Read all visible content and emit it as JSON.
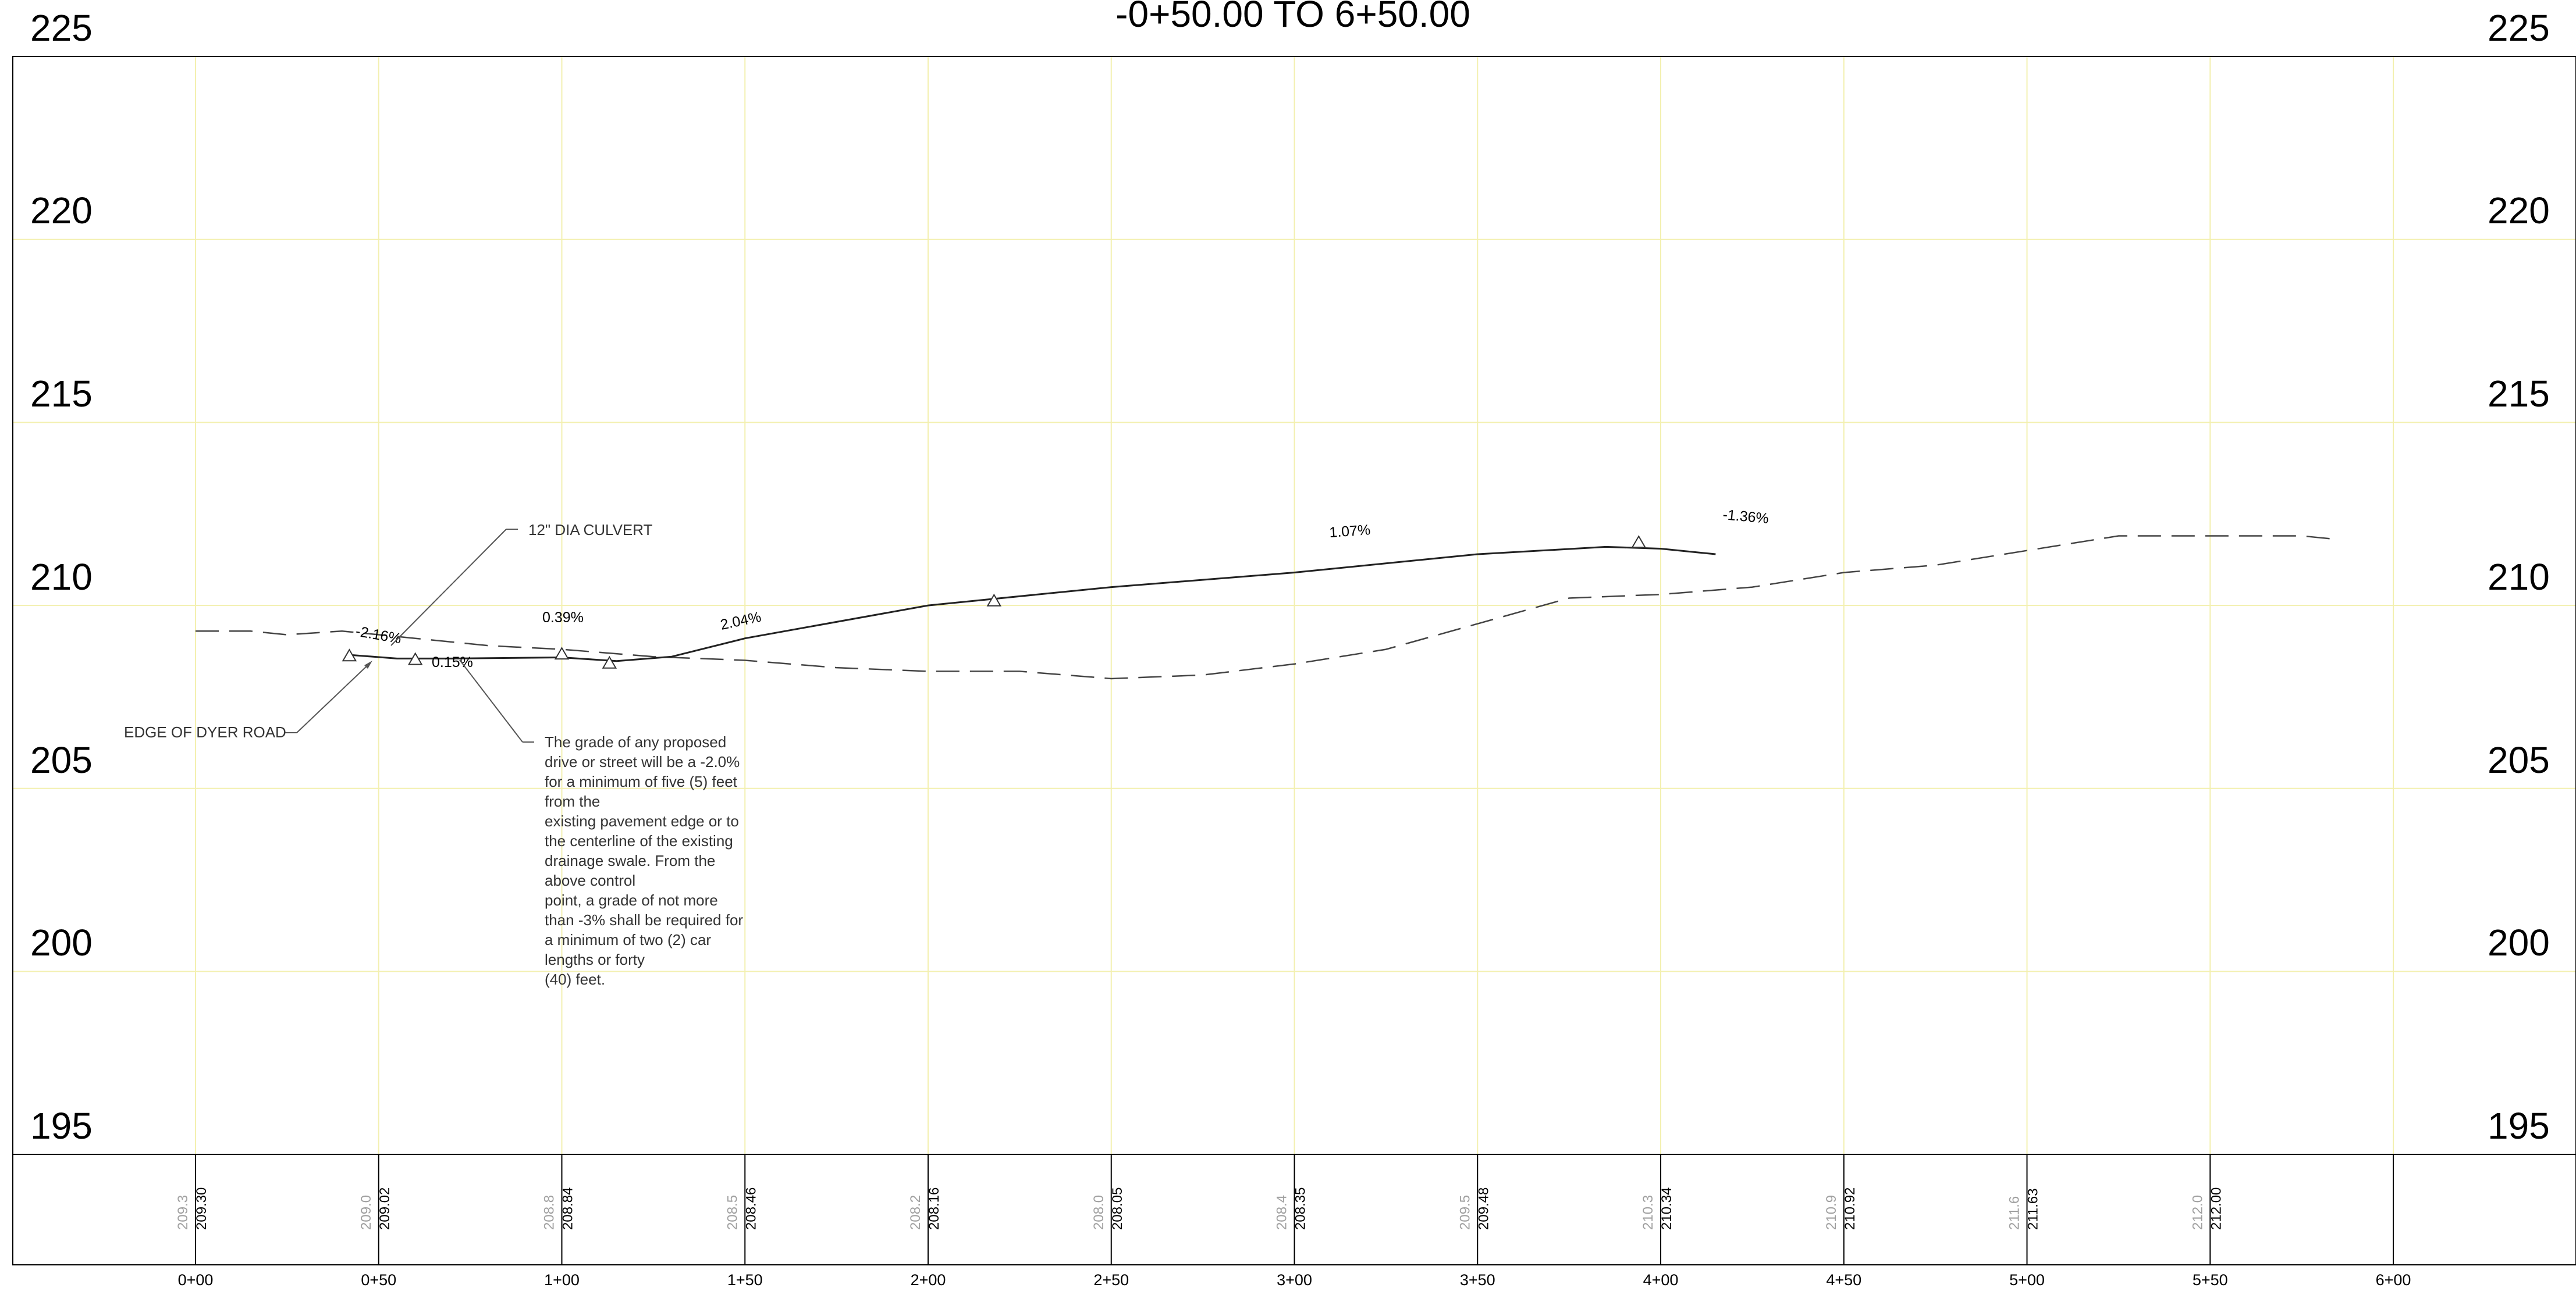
{
  "title": "-0+50.00 TO 6+50.00",
  "elevation_labels": [
    "225",
    "220",
    "215",
    "210",
    "205",
    "200",
    "195"
  ],
  "station_labels": [
    "0+00",
    "0+50",
    "1+00",
    "1+50",
    "2+00",
    "2+50",
    "3+00",
    "3+50",
    "4+00",
    "4+50",
    "5+00",
    "5+50",
    "6+00"
  ],
  "existing_elevations": [
    "209.3",
    "209.0",
    "208.8",
    "208.5",
    "208.2",
    "208.0",
    "208.4",
    "209.5",
    "210.3",
    "210.9",
    "211.6",
    "212.0"
  ],
  "proposed_elevations": [
    "209.30",
    "209.02",
    "208.84",
    "208.46",
    "208.16",
    "208.05",
    "208.35",
    "209.48",
    "210.34",
    "210.92",
    "211.63",
    "212.00"
  ],
  "grades": [
    "-2.16%",
    "0.15%",
    "0.39%",
    "2.04%",
    "1.07%",
    "-1.36%"
  ],
  "callouts": {
    "culvert": "12\" DIA CULVERT",
    "road_edge": "EDGE OF DYER ROAD"
  },
  "note_lines": [
    "The grade of any proposed",
    "drive or street will be a -2.0%",
    "for a minimum of five (5) feet",
    "from the",
    "existing pavement edge or to",
    "the centerline of the existing",
    "drainage swale. From the",
    "above control",
    "point, a grade of not more",
    "than -3% shall be required for",
    "a minimum of two (2) car",
    "lengths or forty",
    "(40)    feet."
  ],
  "chart_data": {
    "type": "line",
    "xlabel": "",
    "ylabel": "",
    "xlim": [
      0,
      600
    ],
    "ylim": [
      195,
      225
    ],
    "series": [
      {
        "style": "dashed",
        "points": [
          [
            0,
            209.3
          ],
          [
            15,
            209.3
          ],
          [
            25,
            209.2
          ],
          [
            40,
            209.3
          ],
          [
            60,
            209.1
          ],
          [
            80,
            208.9
          ],
          [
            100,
            208.8
          ],
          [
            125,
            208.6
          ],
          [
            150,
            208.5
          ],
          [
            175,
            208.3
          ],
          [
            200,
            208.2
          ],
          [
            225,
            208.2
          ],
          [
            250,
            208.0
          ],
          [
            275,
            208.1
          ],
          [
            300,
            208.4
          ],
          [
            325,
            208.8
          ],
          [
            350,
            209.5
          ],
          [
            375,
            210.2
          ],
          [
            400,
            210.3
          ],
          [
            425,
            210.5
          ],
          [
            450,
            210.9
          ],
          [
            475,
            211.1
          ],
          [
            500,
            211.5
          ],
          [
            525,
            211.9
          ],
          [
            550,
            211.9
          ],
          [
            575,
            211.9
          ],
          [
            585,
            211.8
          ]
        ]
      },
      {
        "style": "solid",
        "points": [
          [
            42,
            208.65
          ],
          [
            55,
            208.55
          ],
          [
            70,
            208.55
          ],
          [
            100,
            208.58
          ],
          [
            115,
            208.48
          ],
          [
            130,
            208.6
          ],
          [
            150,
            209.1
          ],
          [
            200,
            210.0
          ],
          [
            250,
            210.5
          ],
          [
            300,
            210.9
          ],
          [
            350,
            211.4
          ],
          [
            385,
            211.6
          ],
          [
            400,
            211.55
          ],
          [
            415,
            211.4
          ]
        ]
      }
    ],
    "vertices": [
      [
        42,
        208.6
      ],
      [
        60,
        208.5
      ],
      [
        100,
        208.65
      ],
      [
        113,
        208.4
      ],
      [
        218,
        210.1
      ],
      [
        394,
        211.7
      ]
    ]
  }
}
